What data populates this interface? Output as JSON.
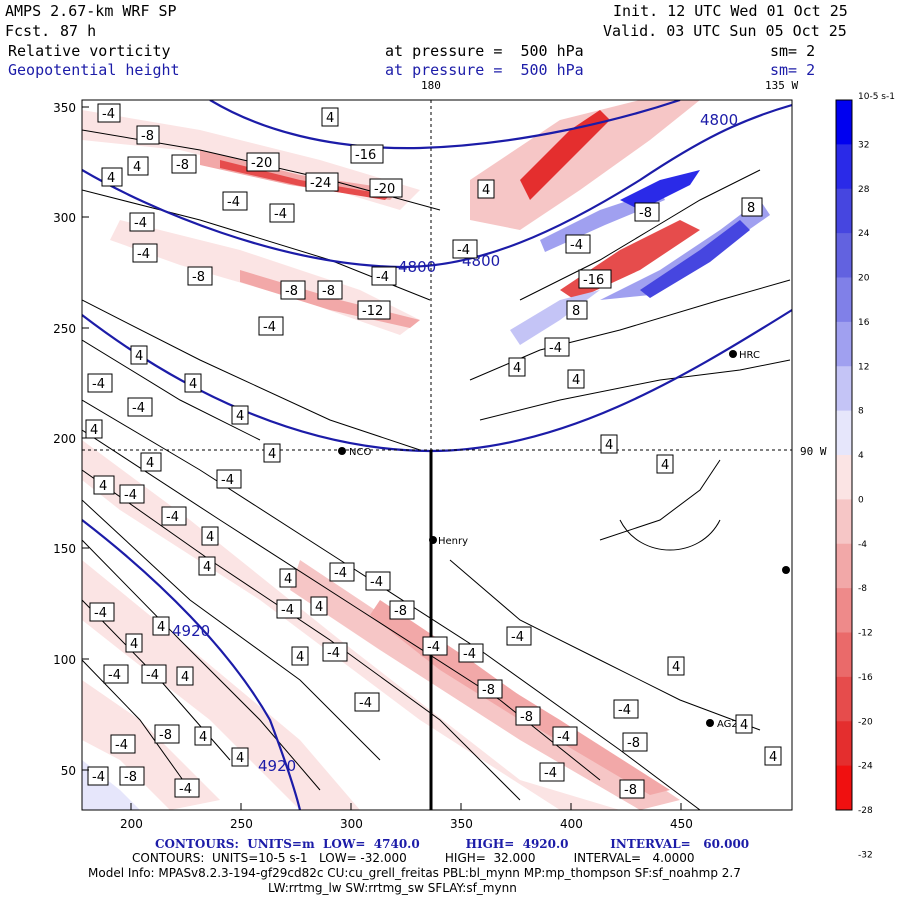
{
  "header": {
    "title": "AMPS 2.67-km WRF SP",
    "fcst_label": "Fcst.",
    "fcst_value": "87 h",
    "init": "Init. 12 UTC Wed 01 Oct 25",
    "valid": "Valid. 03 UTC Sun 05 Oct 25",
    "field1": "Relative vorticity",
    "field2": "Geopotential height",
    "pressure1": "at pressure =  500 hPa",
    "pressure2": "at pressure =  500 hPa",
    "sm1": "sm= 2",
    "sm2": "sm= 2"
  },
  "map": {
    "lon_labels": {
      "top_center": "180",
      "top_right": "135 W",
      "right_mid": "90 W"
    },
    "x_ticks": [
      "200",
      "250",
      "300",
      "350",
      "400",
      "450"
    ],
    "y_ticks": [
      "350",
      "300",
      "250",
      "200",
      "150",
      "100",
      "50"
    ],
    "height_contour_labels": [
      "4800",
      "4800",
      "4800",
      "4920",
      "4920"
    ],
    "stations": [
      "NCO",
      "Henry",
      "HRC",
      "AG2"
    ]
  },
  "colorbar": {
    "units_label": "10-5 s-1",
    "levels": [
      "32",
      "28",
      "24",
      "20",
      "16",
      "12",
      "8",
      "4",
      "0",
      "-4",
      "-8",
      "-12",
      "-16",
      "-20",
      "-24",
      "-28",
      "-32"
    ],
    "colors": [
      "#0000f0",
      "#2a2ae8",
      "#4646e0",
      "#6262e0",
      "#8080e8",
      "#a0a0f0",
      "#c4c4f6",
      "#e6e6fb",
      "#fbe4e4",
      "#f6c6c6",
      "#f2a8a8",
      "#ee8a8a",
      "#ea6a6a",
      "#e64c4c",
      "#e42e2e",
      "#f01010"
    ]
  },
  "footer": {
    "line1": "CONTOURS:  UNITS=m  LOW=  4740.0           HIGH=  4920.0          INTERVAL=   60.000",
    "line2": "CONTOURS:  UNITS=10-5 s-1   LOW= -32.000          HIGH=  32.000          INTERVAL=   4.0000",
    "line3": "Model Info: MPASv8.2.3-194-gf29cd82c CU:cu_grell_freitas PBL:bl_mynn MP:mp_thompson SF:sf_noahmp 2.7",
    "line4": "LW:rrtmg_lw SW:rrtmg_sw SFLAY:sf_mynn"
  }
}
